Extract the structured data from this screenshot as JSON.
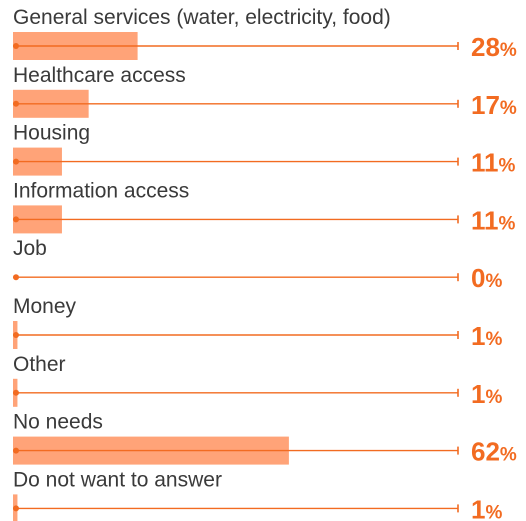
{
  "chart_data": {
    "type": "bar",
    "orientation": "horizontal",
    "categories": [
      "General services (water, electricity, food)",
      "Healthcare access",
      "Housing",
      "Information access",
      "Job",
      "Money",
      "Other",
      "No needs",
      "Do not want to answer"
    ],
    "values": [
      28,
      17,
      11,
      11,
      0,
      1,
      1,
      62,
      1
    ],
    "value_suffix": "%",
    "xlim": [
      0,
      100
    ],
    "grid": false,
    "legend": "none"
  },
  "colors": {
    "bar": "#ffa378",
    "line": "#f26b21",
    "value_text": "#f26b21",
    "label_text": "#3a3a3a"
  }
}
